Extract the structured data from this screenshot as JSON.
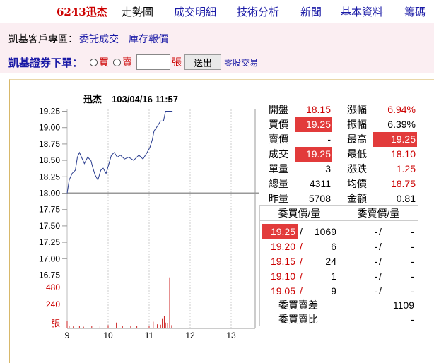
{
  "nav": {
    "stock": "6243迅杰",
    "items": [
      "走勢圖",
      "成交明細",
      "技術分析",
      "新聞",
      "基本資料",
      "籌碼"
    ]
  },
  "zone": {
    "label": "凱基客戶專區：",
    "link1": "委託成交",
    "link2": "庫存報價"
  },
  "order": {
    "title": "凱基證券下單：",
    "buy": "買",
    "sell": "賣",
    "qty_value": "",
    "unit": "張",
    "send": "送出",
    "odd_lot": "零股交易"
  },
  "chart_header": {
    "name": "迅杰",
    "datetime": "103/04/16 11:57"
  },
  "chart_data": {
    "type": "line",
    "ylim": [
      16.75,
      19.25
    ],
    "price_ticks": [
      "19.25",
      "19.00",
      "18.75",
      "18.50",
      "18.25",
      "18.00",
      "17.75",
      "17.50",
      "17.25",
      "17.00",
      "16.75"
    ],
    "volume_ticks": [
      "480",
      "240",
      "張"
    ],
    "x_ticks": [
      "9",
      "10",
      "11",
      "12",
      "13"
    ],
    "reference_price": 18.0,
    "price": [
      [
        9.0,
        18.0
      ],
      [
        9.05,
        18.2
      ],
      [
        9.12,
        18.3
      ],
      [
        9.2,
        18.35
      ],
      [
        9.25,
        18.55
      ],
      [
        9.3,
        18.62
      ],
      [
        9.35,
        18.55
      ],
      [
        9.42,
        18.45
      ],
      [
        9.5,
        18.55
      ],
      [
        9.58,
        18.5
      ],
      [
        9.62,
        18.4
      ],
      [
        9.68,
        18.28
      ],
      [
        9.75,
        18.2
      ],
      [
        9.82,
        18.35
      ],
      [
        9.88,
        18.38
      ],
      [
        9.95,
        18.3
      ],
      [
        10.02,
        18.45
      ],
      [
        10.08,
        18.58
      ],
      [
        10.15,
        18.62
      ],
      [
        10.22,
        18.55
      ],
      [
        10.3,
        18.58
      ],
      [
        10.4,
        18.52
      ],
      [
        10.5,
        18.55
      ],
      [
        10.62,
        18.5
      ],
      [
        10.75,
        18.58
      ],
      [
        10.85,
        18.52
      ],
      [
        10.95,
        18.62
      ],
      [
        11.02,
        18.7
      ],
      [
        11.08,
        18.82
      ],
      [
        11.12,
        18.95
      ],
      [
        11.2,
        19.02
      ],
      [
        11.28,
        19.1
      ],
      [
        11.35,
        19.1
      ],
      [
        11.4,
        19.25
      ],
      [
        11.57,
        19.25
      ]
    ],
    "volume": [
      [
        9.0,
        80
      ],
      [
        9.05,
        25
      ],
      [
        9.15,
        15
      ],
      [
        9.3,
        18
      ],
      [
        9.4,
        12
      ],
      [
        9.6,
        20
      ],
      [
        9.8,
        14
      ],
      [
        10.0,
        30
      ],
      [
        10.2,
        60
      ],
      [
        10.35,
        22
      ],
      [
        10.55,
        25
      ],
      [
        10.7,
        18
      ],
      [
        11.0,
        20
      ],
      [
        11.1,
        70
      ],
      [
        11.2,
        40
      ],
      [
        11.28,
        35
      ],
      [
        11.32,
        110
      ],
      [
        11.37,
        140
      ],
      [
        11.4,
        60
      ],
      [
        11.45,
        50
      ],
      [
        11.5,
        590
      ],
      [
        11.55,
        30
      ]
    ],
    "colors": {
      "line": "#2a3d8f",
      "volume": "#cc2222",
      "reference": "#999999"
    }
  },
  "quote": {
    "open_label": "開盤",
    "open": "18.15",
    "chg_pct_label": "漲幅",
    "chg_pct": "6.94%",
    "bid_label": "買價",
    "bid": "19.25",
    "amp_label": "振幅",
    "amp": "6.39%",
    "ask_label": "賣價",
    "ask": "-",
    "high_label": "最高",
    "high": "19.25",
    "last_label": "成交",
    "last": "19.25",
    "low_label": "最低",
    "low": "18.10",
    "unit_vol_label": "單量",
    "unit_vol": "3",
    "change_label": "漲跌",
    "change": "1.25",
    "total_vol_label": "總量",
    "total_vol": "4311",
    "avg_label": "均價",
    "avg": "18.75",
    "prev_vol_label": "昨量",
    "prev_vol": "5708",
    "amount_label": "金額",
    "amount": "0.81"
  },
  "book": {
    "bid_header": "委買價/量",
    "ask_header": "委賣價/量",
    "bids": [
      {
        "price": "19.25",
        "vol": "1069"
      },
      {
        "price": "19.20",
        "vol": "6"
      },
      {
        "price": "19.15",
        "vol": "24"
      },
      {
        "price": "19.10",
        "vol": "1"
      },
      {
        "price": "19.05",
        "vol": "9"
      }
    ],
    "asks": [
      {
        "price": "-",
        "vol": "-"
      },
      {
        "price": "-",
        "vol": "-"
      },
      {
        "price": "-",
        "vol": "-"
      },
      {
        "price": "-",
        "vol": "-"
      },
      {
        "price": "-",
        "vol": "-"
      }
    ],
    "diff_label": "委買賣差",
    "diff": "1109",
    "ratio_label": "委買賣比",
    "ratio": "-"
  }
}
